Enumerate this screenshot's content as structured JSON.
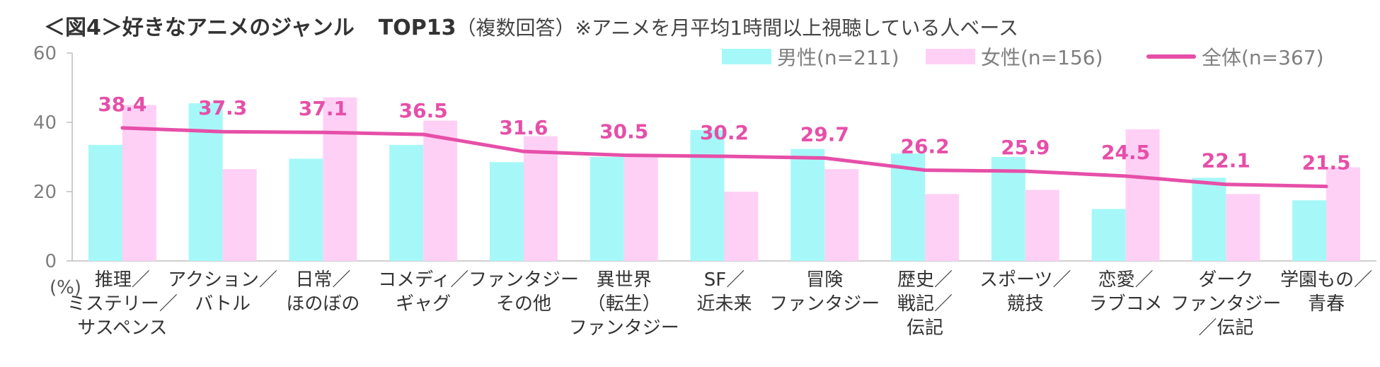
{
  "title": {
    "main": "＜図4＞好きなアニメのジャンル",
    "top": "TOP13",
    "sub": "（複数回答）",
    "note": "※アニメを月平均1時間以上視聴している人ベース"
  },
  "colors": {
    "male": "#a6f8f8",
    "female": "#ffd0f6",
    "total": "#e64fa8"
  },
  "chart_data": {
    "type": "bar",
    "categories": [
      [
        "推理／",
        "ミステリー／",
        "サスペンス"
      ],
      [
        "アクション／",
        "バトル"
      ],
      [
        "日常／",
        "ほのぼの"
      ],
      [
        "コメディ／",
        "ギャグ"
      ],
      [
        "ファンタジー",
        "その他"
      ],
      [
        "異世界",
        "（転生）",
        "ファンタジー"
      ],
      [
        "SF／",
        "近未来"
      ],
      [
        "冒険",
        "ファンタジー"
      ],
      [
        "歴史／",
        "戦記／",
        "伝記"
      ],
      [
        "スポーツ／",
        "競技"
      ],
      [
        "恋愛／",
        "ラブコメ"
      ],
      [
        "ダーク",
        "ファンタジー",
        "／伝記"
      ],
      [
        "学園もの／",
        "青春"
      ]
    ],
    "series": [
      {
        "name": "男性(n=211)",
        "kind": "bar",
        "values": [
          33.5,
          45.5,
          29.5,
          33.5,
          28.5,
          30.0,
          37.8,
          32.3,
          31.0,
          30.0,
          15.0,
          24.0,
          17.5
        ]
      },
      {
        "name": "女性(n=156)",
        "kind": "bar",
        "values": [
          45.0,
          26.5,
          47.2,
          40.5,
          36.0,
          30.5,
          20.0,
          26.5,
          19.3,
          20.5,
          38.0,
          19.3,
          27.0
        ]
      },
      {
        "name": "全体(n=367)",
        "kind": "line",
        "values": [
          38.4,
          37.3,
          37.1,
          36.5,
          31.6,
          30.5,
          30.2,
          29.7,
          26.2,
          25.9,
          24.5,
          22.1,
          21.5
        ],
        "labels": [
          "38.4",
          "37.3",
          "37.1",
          "36.5",
          "31.6",
          "30.5",
          "30.2",
          "29.7",
          "26.2",
          "25.9",
          "24.5",
          "22.1",
          "21.5"
        ]
      }
    ],
    "y_ticks": [
      0,
      20,
      40,
      60
    ],
    "ylim": [
      0,
      60
    ],
    "ylabel": "(%)",
    "xlabel": "",
    "legend_position": "top-right"
  }
}
